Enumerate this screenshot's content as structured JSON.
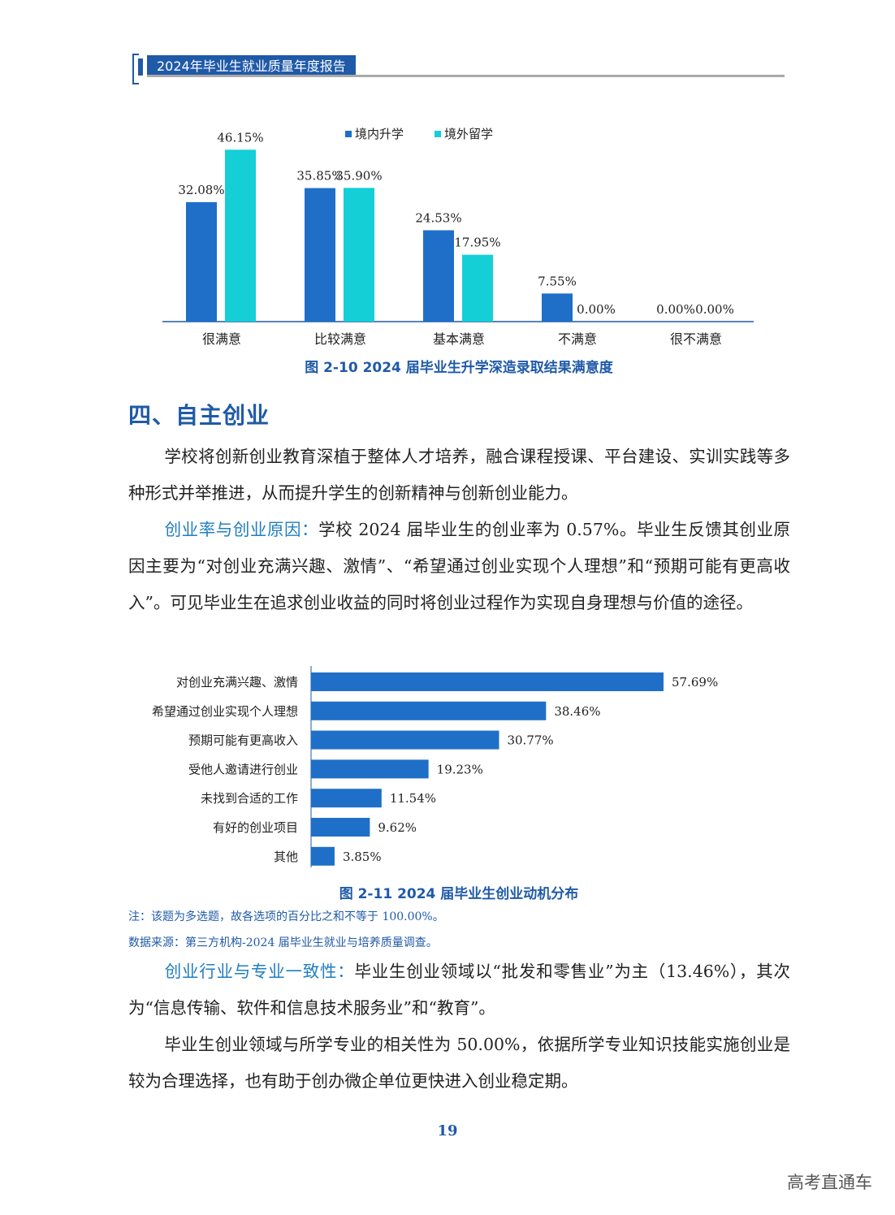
{
  "header": {
    "title": "2024年毕业生就业质量年度报告"
  },
  "colors": {
    "blue": "#1f6fc8",
    "cyan": "#14cfd6",
    "accent": "#1f5aa8"
  },
  "chart_data": [
    {
      "type": "bar",
      "title": "图 2-10   2024 届毕业生升学深造录取结果满意度",
      "categories": [
        "很满意",
        "比较满意",
        "基本满意",
        "不满意",
        "很不满意"
      ],
      "series": [
        {
          "name": "境内升学",
          "values": [
            32.08,
            35.85,
            24.53,
            7.55,
            0.0
          ]
        },
        {
          "name": "境外留学",
          "values": [
            46.15,
            35.9,
            17.95,
            0.0,
            0.0
          ]
        }
      ],
      "value_labels": [
        [
          "32.08%",
          "35.85%",
          "24.53%",
          "7.55%",
          "0.00%"
        ],
        [
          "46.15%",
          "35.90%",
          "17.95%",
          "0.00%",
          "0.00%"
        ]
      ],
      "ylim": [
        0,
        50
      ],
      "legend": "top-center"
    },
    {
      "type": "bar",
      "orientation": "horizontal",
      "title": "图 2-11  2024 届毕业生创业动机分布",
      "categories": [
        "对创业充满兴趣、激情",
        "希望通过创业实现个人理想",
        "预期可能有更高收入",
        "受他人邀请进行创业",
        "未找到合适的工作",
        "有好的创业项目",
        "其他"
      ],
      "values": [
        57.69,
        38.46,
        30.77,
        19.23,
        11.54,
        9.62,
        3.85
      ],
      "value_labels": [
        "57.69%",
        "38.46%",
        "30.77%",
        "19.23%",
        "11.54%",
        "9.62%",
        "3.85%"
      ],
      "xlim": [
        0,
        60
      ]
    }
  ],
  "section": {
    "title": "四、自主创业"
  },
  "paragraphs": {
    "p1": "学校将创新创业教育深植于整体人才培养，融合课程授课、平台建设、实训实践等多种形式并举推进，从而提升学生的创新精神与创新创业能力。",
    "p2_label": "创业率与创业原因：",
    "p2": "学校 2024 届毕业生的创业率为 0.57%。毕业生反馈其创业原因主要为“对创业充满兴趣、激情”、“希望通过创业实现个人理想”和“预期可能有更高收入”。可见毕业生在追求创业收益的同时将创业过程作为实现自身理想与价值的途径。",
    "p3_label": "创业行业与专业一致性：",
    "p3": "毕业生创业领域以“批发和零售业”为主（13.46%），其次为“信息传输、软件和信息技术服务业”和“教育”。",
    "p4": "毕业生创业领域与所学专业的相关性为 50.00%，依据所学专业知识技能实施创业是较为合理选择，也有助于创办微企单位更快进入创业稳定期。"
  },
  "notes": {
    "note": "注：该题为多选题，故各选项的百分比之和不等于 100.00%。",
    "source": "数据来源：第三方机构-2024 届毕业生就业与培养质量调查。"
  },
  "page_number": "19",
  "watermark": "高考直通车"
}
